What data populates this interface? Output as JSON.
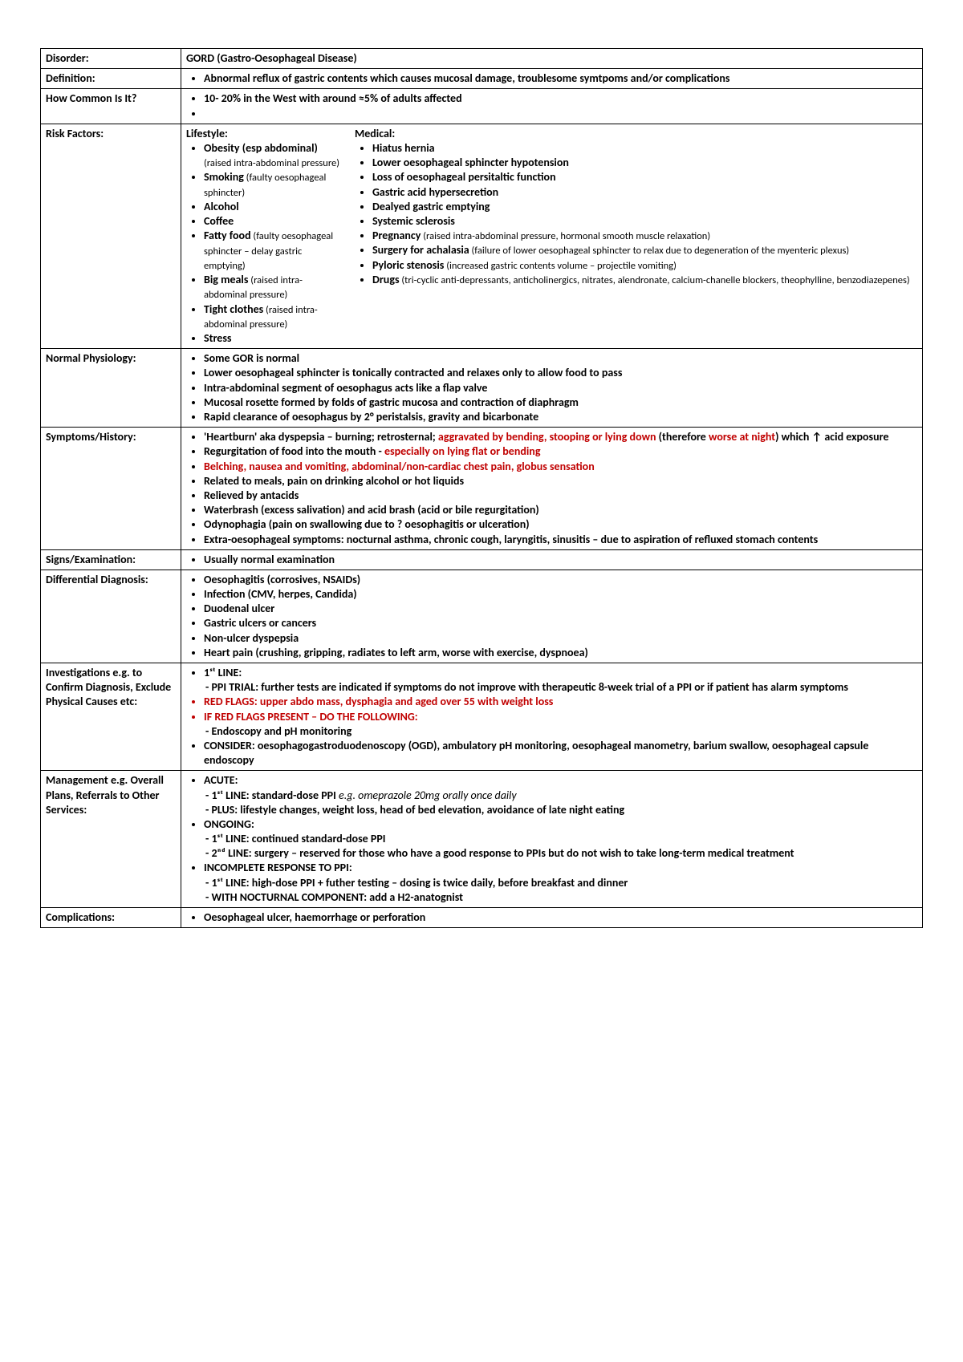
{
  "colors": {
    "text": "#000000",
    "border": "#000000",
    "red": "#c00000",
    "background": "#ffffff"
  },
  "rows": {
    "disorder": {
      "label": "Disorder:",
      "value": "GORD (Gastro-Oesophageal Disease)"
    },
    "definition": {
      "label": "Definition:",
      "bullets": [
        "Abnormal reflux of gastric contents which causes mucosal damage, troublesome symtpoms and/or complications"
      ]
    },
    "common": {
      "label": "How Common Is It?",
      "bullets": [
        "10- 20% in the West with around ≈5% of adults affected",
        ""
      ]
    },
    "risk": {
      "label": "Risk Factors:",
      "lifestyle_hdr": "Lifestyle:",
      "medical_hdr": "Medical:",
      "lifestyle": [
        {
          "main": "Obesity (esp abdominal)",
          "sub": " (raised intra-abdominal pressure)"
        },
        {
          "main": "Smoking",
          "sub": " (faulty oesophageal sphincter)"
        },
        {
          "main": "Alcohol",
          "sub": ""
        },
        {
          "main": "Coffee",
          "sub": ""
        },
        {
          "main": "Fatty food",
          "sub": " (faulty oesophageal sphincter – delay gastric emptying)"
        },
        {
          "main": "Big meals",
          "sub": " (raised intra-abdominal pressure)"
        },
        {
          "main": "Tight clothes",
          "sub": " (raised intra-abdominal pressure)"
        },
        {
          "main": "Stress",
          "sub": ""
        }
      ],
      "medical": [
        {
          "main": "Hiatus hernia",
          "sub": ""
        },
        {
          "main": "Lower oesophageal sphincter hypotension",
          "sub": ""
        },
        {
          "main": "Loss of oesophageal persitaltic function",
          "sub": ""
        },
        {
          "main": "Gastric acid hypersecretion",
          "sub": ""
        },
        {
          "main": "Dealyed gastric emptying",
          "sub": ""
        },
        {
          "main": "Systemic sclerosis",
          "sub": ""
        },
        {
          "main": "Pregnancy",
          "sub": " (raised intra-abdominal pressure, hormonal smooth muscle relaxation)"
        },
        {
          "main": "Surgery for achalasia",
          "sub": " (failure of lower oesophageal sphincter to relax due to degeneration of the myenteric plexus)"
        },
        {
          "main": "Pyloric stenosis",
          "sub": " (increased gastric contents volume – projectile vomiting)"
        },
        {
          "main": "Drugs",
          "sub": " (tri-cyclic anti-depressants, anticholinergics, nitrates, alendronate, calcium-chanelle blockers, theophylline, benzodiazepenes)"
        }
      ]
    },
    "physiology": {
      "label": "Normal Physiology:",
      "bullets": [
        "Some GOR is normal",
        "Lower oesophageal sphincter is tonically contracted and relaxes only to allow food to pass",
        "Intra-abdominal segment of oesophagus acts like a flap valve",
        "Mucosal rosette formed by folds of gastric mucosa and contraction of diaphragm",
        "Rapid clearance of oesophagus by 2° peristalsis, gravity and bicarbonate"
      ]
    },
    "symptoms": {
      "label": "Symptoms/History:",
      "items": [
        {
          "pre": "'Heartburn' aka dyspepsia – burning; retrosternal; ",
          "red1": "aggravated by bending, stooping or lying down",
          "mid": " (therefore ",
          "red2": "worse at night",
          "post": ") which ↑ acid exposure"
        },
        {
          "text": "Regurgitation of food into the mouth - ",
          "red": "especially on lying flat or bending"
        },
        {
          "red_full": "Belching, nausea and vomiting, abdominal/non-cardiac chest pain, globus sensation"
        },
        {
          "plain": "Related to meals, pain on drinking alcohol or hot liquids"
        },
        {
          "plain": "Relieved by antacids"
        },
        {
          "plain": "Waterbrash (excess salivation) and acid brash (acid or bile regurgitation)"
        },
        {
          "plain": "Odynophagia (pain on swallowing due to ? oesophagitis or ulceration)"
        },
        {
          "plain": "Extra-oesophageal symptoms: nocturnal asthma, chronic cough, laryngitis, sinusitis – due to aspiration of refluxed stomach contents"
        }
      ]
    },
    "signs": {
      "label": "Signs/Examination:",
      "bullets": [
        "Usually normal examination"
      ]
    },
    "differential": {
      "label": "Differential Diagnosis:",
      "bullets": [
        "Oesophagitis (corrosives, NSAIDs)",
        "Infection (CMV, herpes, Candida)",
        "Duodenal ulcer",
        "Gastric ulcers or cancers",
        "Non-ulcer dyspepsia",
        "Heart pain (crushing, gripping, radiates to left arm, worse with exercise, dyspnoea)"
      ]
    },
    "investigations": {
      "label": "Investigations e.g. to Confirm Diagnosis, Exclude Physical Causes etc:",
      "first_line": "1ˢᵗ LINE:",
      "ppi": "PPI TRIAL: further tests are indicated if symptoms do not improve with therapeutic 8-week trial of a PPI or if patient has alarm symptoms",
      "red_flags": "RED FLAGS: upper abdo mass, dysphagia and aged over 55 with weight loss",
      "if_red": "IF RED FLAGS PRESENT – DO THE FOLLOWING:",
      "endoscopy": "Endoscopy and pH monitoring",
      "consider": "CONSIDER: oesophagogastroduodenoscopy (OGD), ambulatory pH monitoring, oesophageal manometry, barium swallow, oesophageal capsule endoscopy"
    },
    "management": {
      "label": "Management e.g. Overall Plans, Referrals to Other Services:",
      "acute": "ACUTE:",
      "acute1_pre": "1ˢᵗ LINE: standard-dose PPI ",
      "acute1_em": "e.g. omeprazole 20mg orally once daily",
      "acute2": "PLUS: lifestyle changes, weight loss, head of bed elevation, avoidance of late night eating",
      "ongoing": "ONGOING:",
      "ongoing1": "1ˢᵗ LINE: continued standard-dose PPI",
      "ongoing2": "2ⁿᵈ LINE: surgery – reserved for those who have a good response to PPIs but do not wish to take long-term medical treatment",
      "incomplete": "INCOMPLETE RESPONSE TO PPI:",
      "inc1": "1ˢᵗ LINE: high-dose PPI + futher testing – dosing is twice daily, before breakfast and dinner",
      "inc2": "WITH NOCTURNAL COMPONENT: add a H2-anatognist"
    },
    "complications": {
      "label": "Complications:",
      "bullets": [
        "Oesophageal ulcer, haemorrhage or perforation"
      ]
    }
  }
}
